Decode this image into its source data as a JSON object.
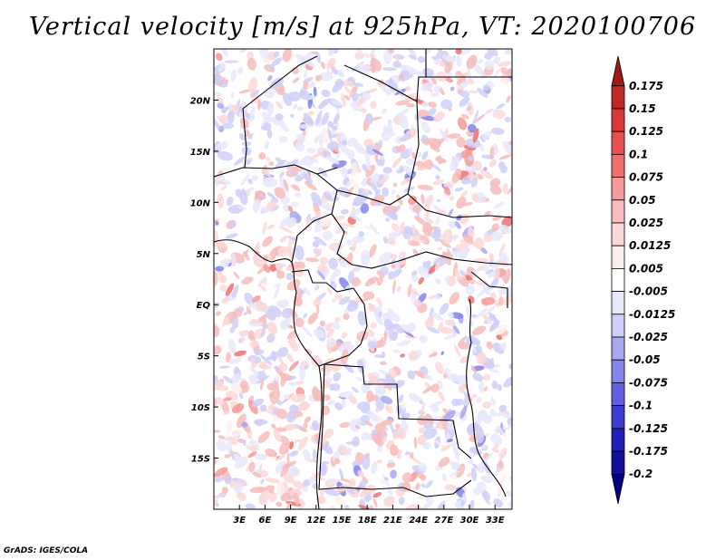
{
  "title": "Vertical velocity [m/s] at 925hPa, VT: 2020100706",
  "credit": "GrADS: IGES/COLA",
  "map": {
    "region": "Central Africa",
    "lon_range": [
      0,
      35
    ],
    "lat_range": [
      -20,
      25
    ],
    "lat_ticks": [
      {
        "label": "20N",
        "lat": 20
      },
      {
        "label": "15N",
        "lat": 15
      },
      {
        "label": "10N",
        "lat": 10
      },
      {
        "label": "5N",
        "lat": 5
      },
      {
        "label": "EQ",
        "lat": 0
      },
      {
        "label": "5S",
        "lat": -5
      },
      {
        "label": "10S",
        "lat": -10
      },
      {
        "label": "15S",
        "lat": -15
      }
    ],
    "lon_ticks": [
      {
        "label": "3E",
        "lon": 3
      },
      {
        "label": "6E",
        "lon": 6
      },
      {
        "label": "9E",
        "lon": 9
      },
      {
        "label": "12E",
        "lon": 12
      },
      {
        "label": "15E",
        "lon": 15
      },
      {
        "label": "18E",
        "lon": 18
      },
      {
        "label": "21E",
        "lon": 21
      },
      {
        "label": "24E",
        "lon": 24
      },
      {
        "label": "27E",
        "lon": 27
      },
      {
        "label": "30E",
        "lon": 30
      },
      {
        "label": "33E",
        "lon": 33
      }
    ]
  },
  "colorbar": {
    "labels": [
      "0.175",
      "0.15",
      "0.125",
      "0.1",
      "0.075",
      "0.05",
      "0.025",
      "0.0125",
      "0.005",
      "-0.005",
      "-0.0125",
      "-0.025",
      "-0.05",
      "-0.075",
      "-0.1",
      "-0.125",
      "-0.175",
      "-0.2"
    ],
    "colors": [
      "#a01818",
      "#c02828",
      "#d83838",
      "#e85050",
      "#f07070",
      "#f59a9a",
      "#f8bcbc",
      "#fbd8d8",
      "#fdeeee",
      "#ffffff",
      "#e8e8fb",
      "#cfcff8",
      "#a8a8f2",
      "#8484ea",
      "#6060e0",
      "#3c3cd0",
      "#2020b8",
      "#10109a",
      "#000080"
    ]
  }
}
